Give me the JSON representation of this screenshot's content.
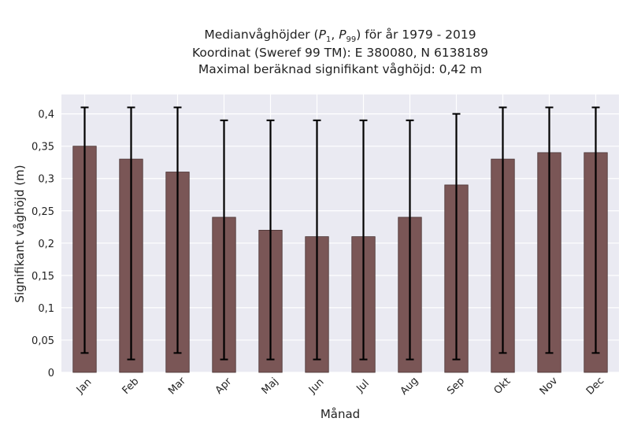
{
  "chart_data": {
    "type": "bar",
    "title": {
      "line1": {
        "prefix": "Medianvåghöjder (",
        "p": "P",
        "s1": "1",
        "sep": ", ",
        "s99": "99",
        "suffix": ") för år 1979 - 2019"
      },
      "line2": "Koordinat (Sweref 99 TM): E 380080, N 6138189",
      "line3": "Maximal beräknad signifikant våghöjd: 0,42 m"
    },
    "xlabel": "Månad",
    "ylabel": "Signifikant våghöjd (m)",
    "categories": [
      "Jan",
      "Feb",
      "Mar",
      "Apr",
      "Maj",
      "Jun",
      "Jul",
      "Aug",
      "Sep",
      "Okt",
      "Nov",
      "Dec"
    ],
    "values": [
      0.35,
      0.33,
      0.31,
      0.24,
      0.22,
      0.21,
      0.21,
      0.24,
      0.29,
      0.33,
      0.34,
      0.34
    ],
    "error_low": [
      0.03,
      0.02,
      0.03,
      0.02,
      0.02,
      0.02,
      0.02,
      0.02,
      0.02,
      0.03,
      0.03,
      0.03
    ],
    "error_high": [
      0.41,
      0.41,
      0.41,
      0.39,
      0.39,
      0.39,
      0.39,
      0.39,
      0.4,
      0.41,
      0.41,
      0.41
    ],
    "ylim": [
      0,
      0.43
    ],
    "yticks": [
      0,
      0.05,
      0.1,
      0.15,
      0.2,
      0.25,
      0.3,
      0.35,
      0.4
    ],
    "ytick_labels": [
      "0",
      "0,05",
      "0,1",
      "0,15",
      "0,2",
      "0,25",
      "0,3",
      "0,35",
      "0,4"
    ],
    "grid": true,
    "colors": {
      "bar": "#7a5656",
      "plot_bg": "#eaeaf2",
      "grid": "#ffffff",
      "error": "#000000"
    }
  }
}
